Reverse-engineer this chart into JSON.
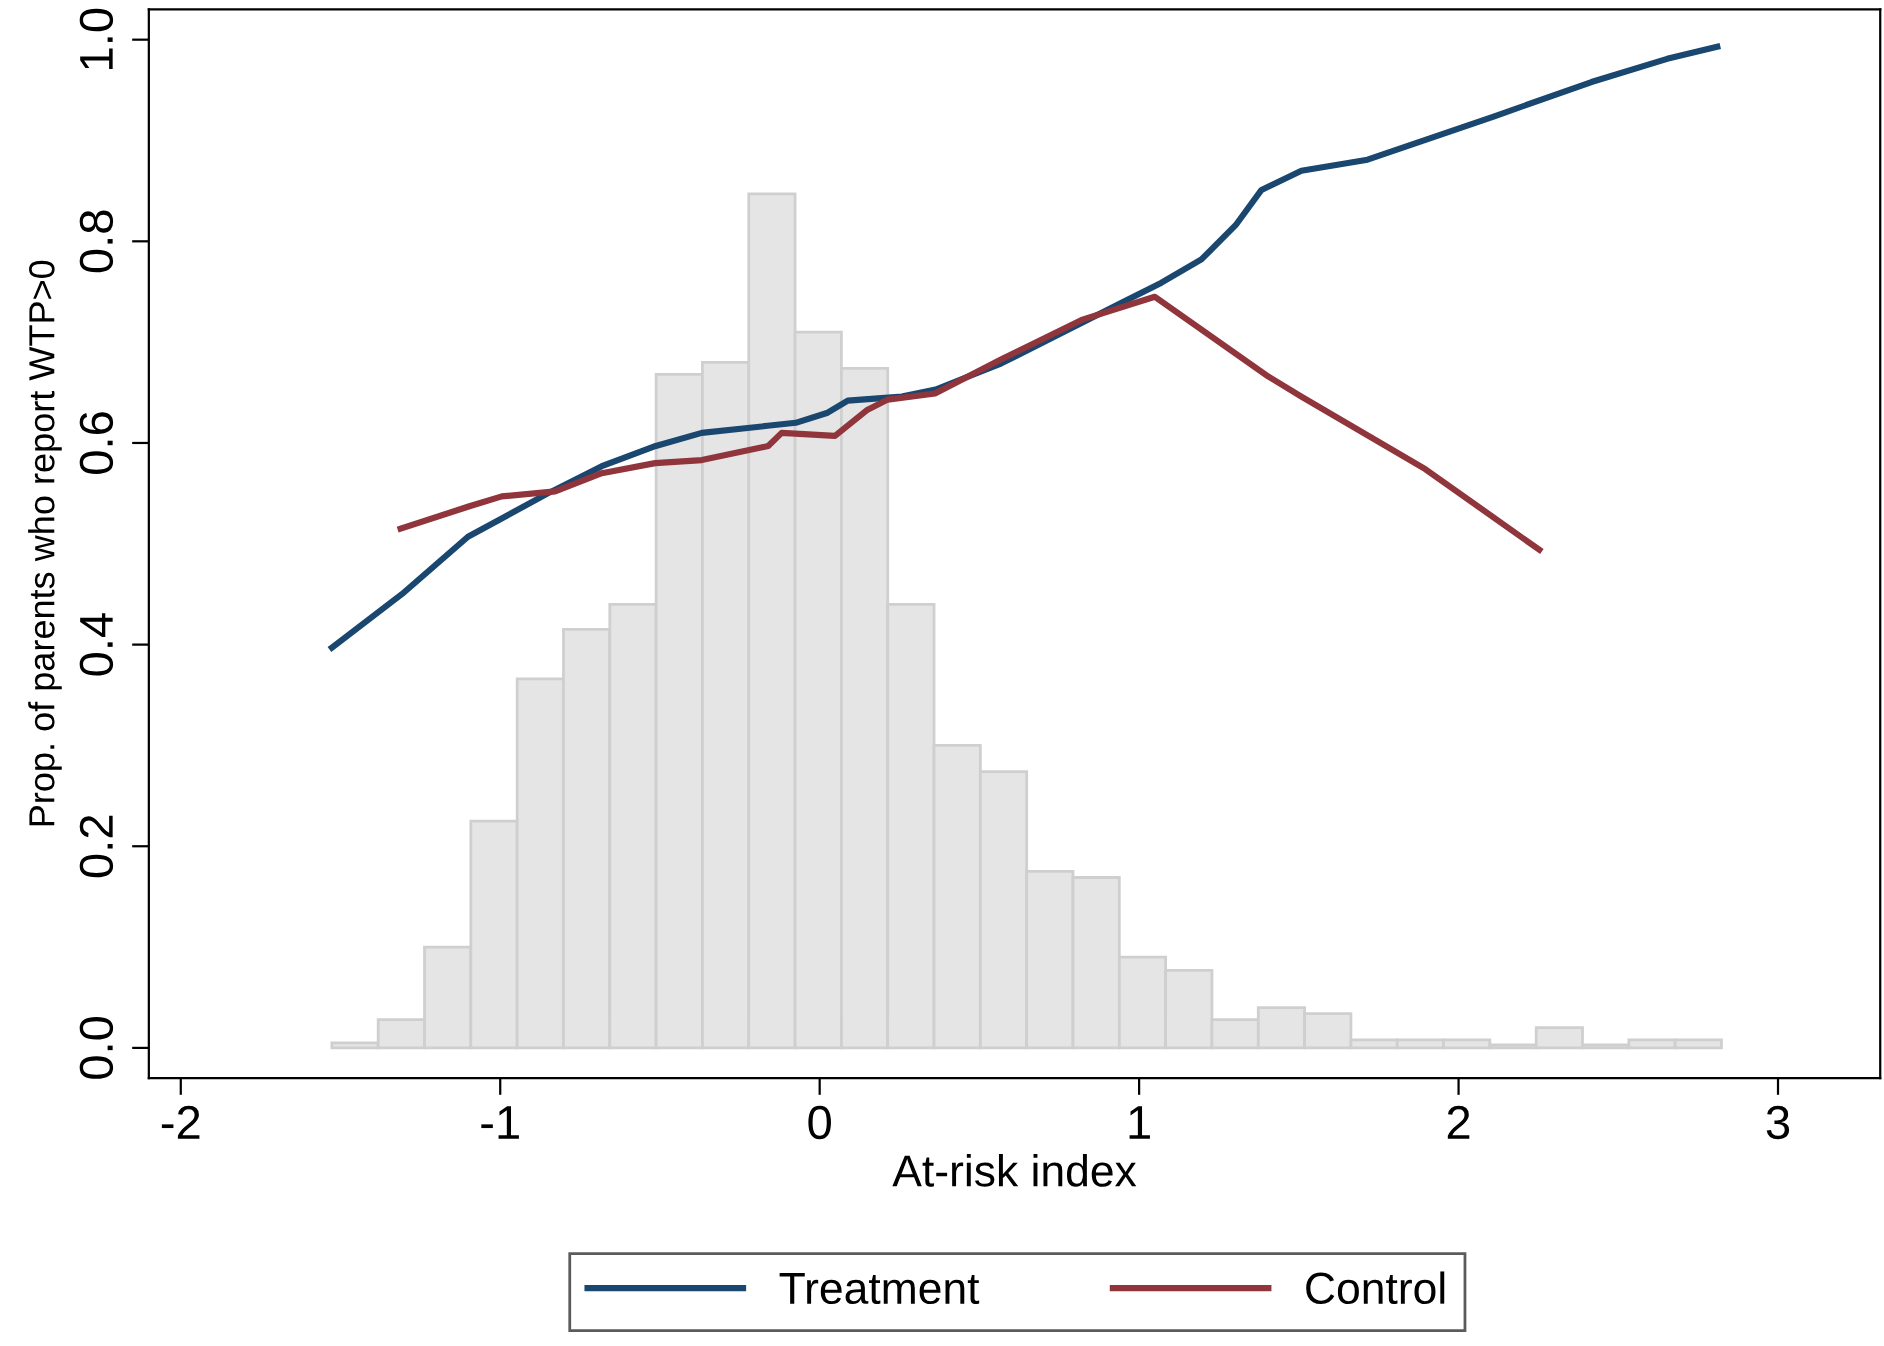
{
  "chart_data": {
    "type": "line",
    "xlabel": "At-risk index",
    "ylabel": "Prop. of parents who report WTP>0",
    "xlim": [
      -2.1,
      3.32
    ],
    "ylim": [
      -0.03,
      1.03
    ],
    "xticks": [
      -2,
      -1,
      0,
      1,
      2,
      3
    ],
    "yticks": [
      {
        "value": 0,
        "label": "0.0"
      },
      {
        "value": 0.2,
        "label": "0.2"
      },
      {
        "value": 0.4,
        "label": "0.4"
      },
      {
        "value": 0.6,
        "label": "0.6"
      },
      {
        "value": 0.8,
        "label": "0.8"
      },
      {
        "value": 1,
        "label": "1.0"
      }
    ],
    "grid": false,
    "legend": "bottom",
    "marker": "none",
    "line_style": "solid",
    "series": [
      {
        "type": "histogram",
        "color": "#e5e5e5",
        "bins": [
          -1.527,
          -1.382,
          -1.237,
          -1.092,
          -0.947,
          -0.802,
          -0.657,
          -0.512,
          -0.367,
          -0.222,
          -0.077,
          0.068,
          0.213,
          0.358,
          0.503,
          0.648,
          0.793,
          0.938,
          1.083,
          1.228,
          1.373,
          1.518,
          1.663,
          1.808,
          1.953,
          2.098,
          2.243,
          2.388,
          2.533,
          2.678,
          2.823
        ],
        "values": [
          0.005,
          0.028,
          0.1,
          0.225,
          0.366,
          0.415,
          0.44,
          0.668,
          0.68,
          0.847,
          0.71,
          0.674,
          0.44,
          0.3,
          0.274,
          0.175,
          0.169,
          0.09,
          0.077,
          0.028,
          0.04,
          0.034,
          0.008,
          0.008,
          0.008,
          0.003,
          0.02,
          0.003,
          0.008,
          0.008
        ]
      },
      {
        "name": "Treatment",
        "color": "#1a476f",
        "x": [
          -1.527,
          -1.308,
          -1.101,
          -0.851,
          -0.682,
          -0.513,
          -0.369,
          -0.163,
          -0.075,
          0.025,
          0.088,
          0.257,
          0.363,
          0.569,
          0.776,
          0.945,
          1.07,
          1.195,
          1.302,
          1.383,
          1.508,
          1.715,
          2.112,
          2.416,
          2.653,
          2.81
        ],
        "values": [
          0.397,
          0.45,
          0.507,
          0.55,
          0.577,
          0.597,
          0.61,
          0.617,
          0.62,
          0.63,
          0.642,
          0.646,
          0.653,
          0.679,
          0.712,
          0.739,
          0.759,
          0.782,
          0.816,
          0.851,
          0.87,
          0.881,
          0.924,
          0.958,
          0.981,
          0.993
        ]
      },
      {
        "name": "Control",
        "color": "#90353b",
        "x": [
          -1.312,
          -1.099,
          -0.995,
          -0.828,
          -0.682,
          -0.515,
          -0.369,
          -0.161,
          -0.119,
          0.048,
          0.15,
          0.213,
          0.361,
          0.569,
          0.82,
          1.049,
          1.404,
          1.508,
          1.896,
          2.253
        ],
        "values": [
          0.515,
          0.537,
          0.547,
          0.552,
          0.57,
          0.58,
          0.583,
          0.597,
          0.61,
          0.607,
          0.633,
          0.643,
          0.649,
          0.683,
          0.722,
          0.745,
          0.666,
          0.646,
          0.574,
          0.494
        ]
      }
    ]
  }
}
